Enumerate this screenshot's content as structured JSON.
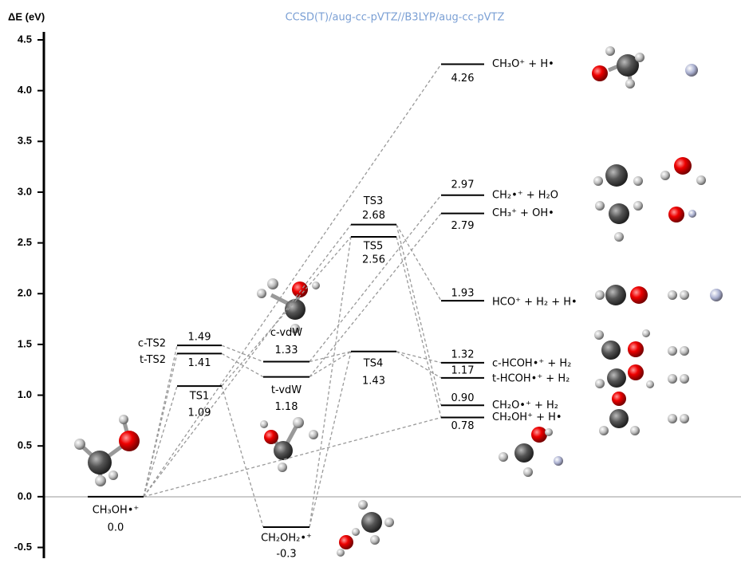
{
  "chart_data": {
    "type": "energy-levels",
    "y_label": "ΔE (eV)",
    "subtitle": "CCSD(T)/aug-cc-pVTZ//B3LYP/aug-cc-pVTZ",
    "ylim": [
      -0.5,
      4.5
    ],
    "yticks": [
      {
        "value": -0.5,
        "label": "-0.5"
      },
      {
        "value": 0,
        "label": "0.0"
      },
      0.5,
      {
        "value": 1,
        "label": "1.0"
      },
      1.5,
      {
        "value": 2,
        "label": "2.0"
      },
      2.5,
      {
        "value": 3,
        "label": "3.0"
      },
      3.5,
      {
        "value": 4,
        "label": "4.0"
      },
      4.5
    ],
    "levels": [
      {
        "name": "CH₃OH•⁺",
        "value": 0,
        "value_label": "0.0"
      },
      {
        "name": "c-TS2",
        "value": 1.49
      },
      {
        "name": "t-TS2",
        "value": 1.41
      },
      {
        "name": "TS1",
        "value": 1.09
      },
      {
        "name": "c-vdW",
        "value": 1.33
      },
      {
        "name": "t-vdW",
        "value": 1.18
      },
      {
        "name": "CH₂OH₂•⁺",
        "value": -0.3
      },
      {
        "name": "TS3",
        "value": 2.68
      },
      {
        "name": "TS5",
        "value": 2.56
      },
      {
        "name": "TS4",
        "value": 1.43
      },
      {
        "name": "CH₃O⁺ + H•",
        "value": 4.26
      },
      {
        "name": "CH₂•⁺ + H₂O",
        "value": 2.97
      },
      {
        "name": "CH₃⁺ + OH•",
        "value": 2.79
      },
      {
        "name": "HCO⁺ + H₂ + H•",
        "value": 1.93
      },
      {
        "name": "c-HCOH•⁺ + H₂",
        "value": 1.32
      },
      {
        "name": "t-HCOH•⁺ + H₂",
        "value": 1.17
      },
      {
        "name": "CH₂O•⁺ + H₂",
        "value": 0.9,
        "value_label": "0.90"
      },
      {
        "name": "CH₂OH⁺ + H•",
        "value": 0.78
      }
    ]
  }
}
